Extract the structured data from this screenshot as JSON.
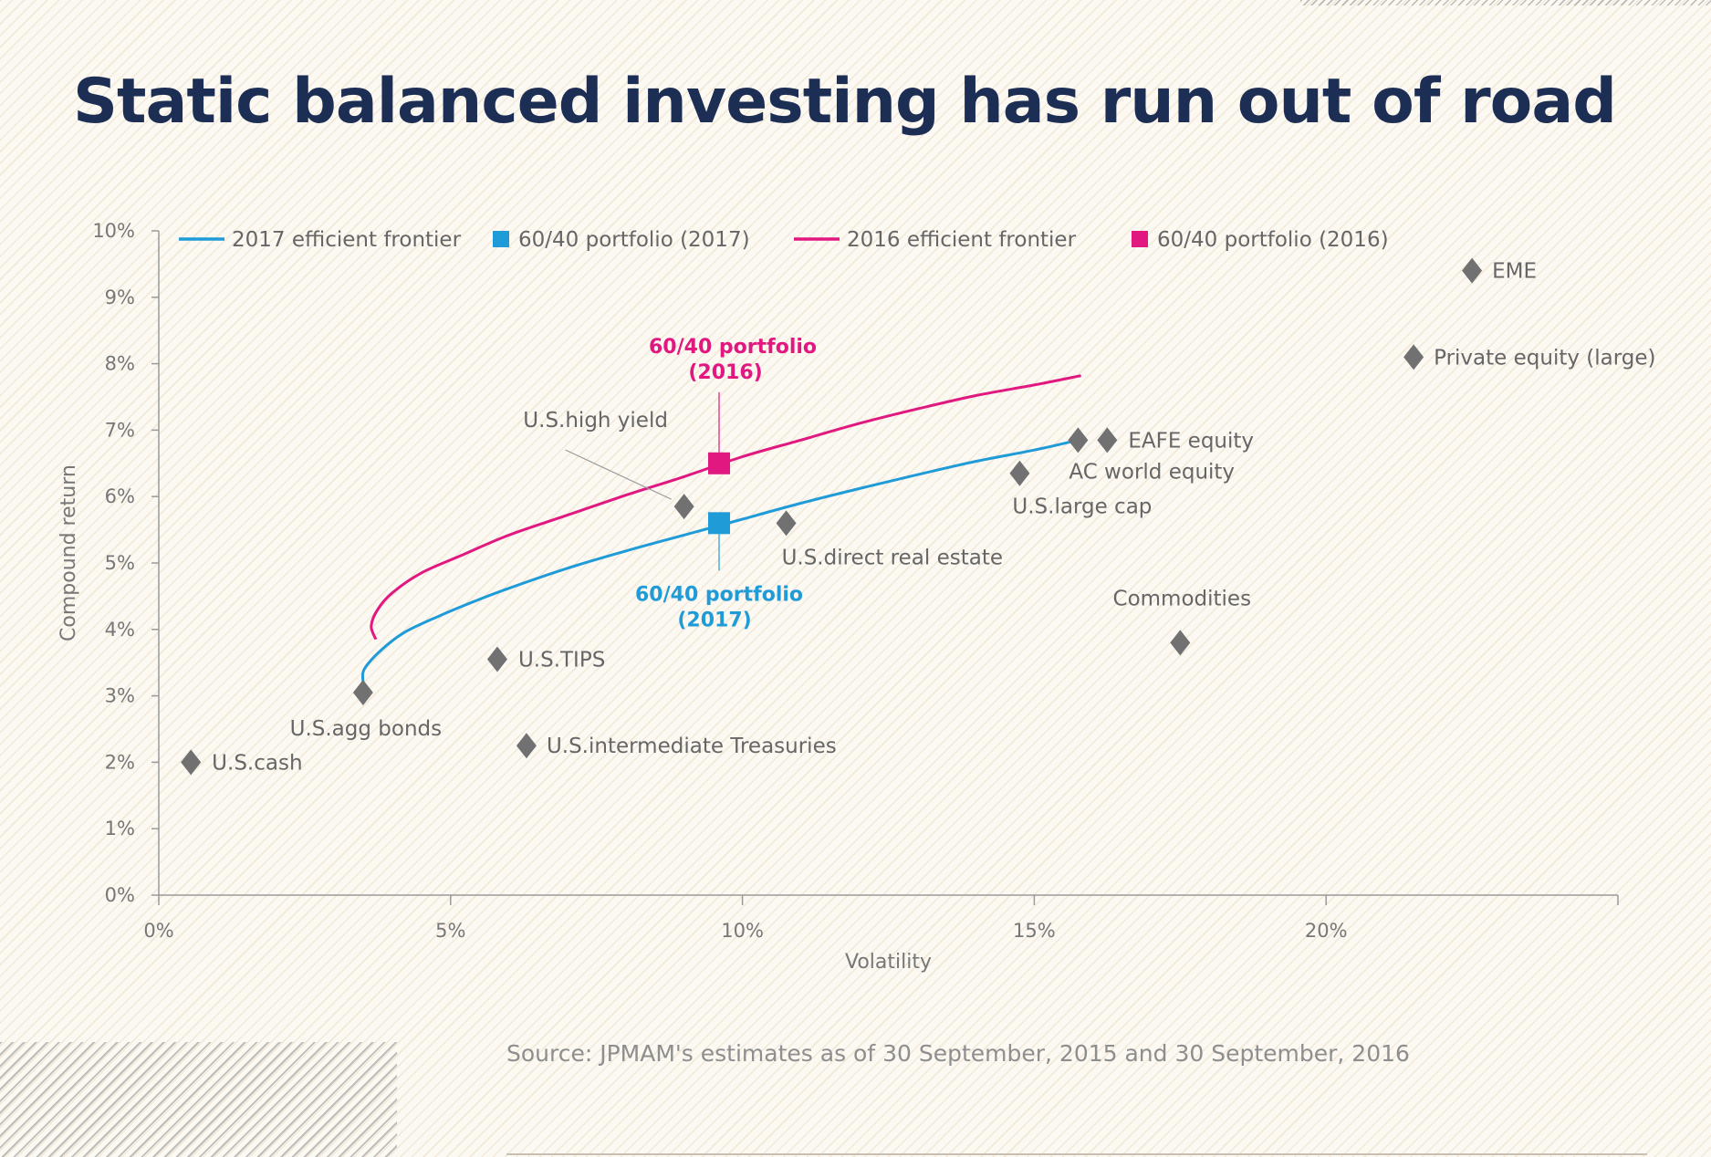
{
  "title": "Static balanced investing has run out of road",
  "source": "Source: JPMAM's estimates as of 30 September, 2015 and 30 September, 2016",
  "colors": {
    "frontier_2017": "#1f9bd8",
    "frontier_2016": "#e0187f",
    "asset_marker": "#717171",
    "title": "#1d2e55"
  },
  "chart_data": {
    "type": "scatter",
    "xlabel": "Volatility",
    "ylabel": "Compound return",
    "xlim": [
      0,
      25
    ],
    "ylim": [
      0,
      10
    ],
    "x_ticks": [
      0,
      5,
      10,
      15,
      20
    ],
    "x_tick_labels": [
      "0%",
      "5%",
      "10%",
      "15%",
      "20%"
    ],
    "y_ticks": [
      0,
      1,
      2,
      3,
      4,
      5,
      6,
      7,
      8,
      9,
      10
    ],
    "y_tick_labels": [
      "0%",
      "1%",
      "2%",
      "3%",
      "4%",
      "5%",
      "6%",
      "7%",
      "8%",
      "9%",
      "10%"
    ],
    "legend": [
      {
        "label": "2017 efficient frontier",
        "kind": "line",
        "color": "#1f9bd8"
      },
      {
        "label": "60/40 portfolio (2017)",
        "kind": "square",
        "color": "#1f9bd8"
      },
      {
        "label": "2016 efficient frontier",
        "kind": "line",
        "color": "#e0187f"
      },
      {
        "label": "60/40 portfolio (2016)",
        "kind": "square",
        "color": "#e0187f"
      }
    ],
    "series": [
      {
        "name": "2017 efficient frontier",
        "color": "#1f9bd8",
        "points": [
          [
            3.5,
            3.2
          ],
          [
            3.52,
            3.4
          ],
          [
            3.8,
            3.68
          ],
          [
            4.2,
            3.95
          ],
          [
            4.8,
            4.2
          ],
          [
            5.4,
            4.42
          ],
          [
            6.0,
            4.62
          ],
          [
            7.0,
            4.92
          ],
          [
            8.0,
            5.18
          ],
          [
            9.0,
            5.42
          ],
          [
            10.0,
            5.66
          ],
          [
            11.0,
            5.9
          ],
          [
            12.0,
            6.12
          ],
          [
            13.0,
            6.33
          ],
          [
            14.0,
            6.53
          ],
          [
            15.0,
            6.7
          ],
          [
            15.75,
            6.85
          ]
        ]
      },
      {
        "name": "2016 efficient frontier",
        "color": "#e0187f",
        "points": [
          [
            3.72,
            3.85
          ],
          [
            3.64,
            4.05
          ],
          [
            3.75,
            4.3
          ],
          [
            4.0,
            4.55
          ],
          [
            4.5,
            4.85
          ],
          [
            5.2,
            5.12
          ],
          [
            6.0,
            5.42
          ],
          [
            7.0,
            5.72
          ],
          [
            8.0,
            6.02
          ],
          [
            9.0,
            6.3
          ],
          [
            10.0,
            6.6
          ],
          [
            11.0,
            6.85
          ],
          [
            12.0,
            7.1
          ],
          [
            13.0,
            7.32
          ],
          [
            14.0,
            7.52
          ],
          [
            15.0,
            7.68
          ],
          [
            15.8,
            7.82
          ]
        ]
      }
    ],
    "portfolios": [
      {
        "name": "60/40 portfolio (2017)",
        "x": 9.6,
        "y": 5.6,
        "color": "#1f9bd8",
        "label_lines": [
          "60/40 portfolio",
          "(2017)"
        ]
      },
      {
        "name": "60/40 portfolio (2016)",
        "x": 9.6,
        "y": 6.5,
        "color": "#e0187f",
        "label_lines": [
          "60/40 portfolio",
          "(2016)"
        ]
      }
    ],
    "assets": [
      {
        "name": "U.S.cash",
        "x": 0.55,
        "y": 2.0
      },
      {
        "name": "U.S.agg bonds",
        "x": 3.5,
        "y": 3.05
      },
      {
        "name": "U.S.TIPS",
        "x": 5.8,
        "y": 3.55
      },
      {
        "name": "U.S.intermediate Treasuries",
        "x": 6.3,
        "y": 2.25
      },
      {
        "name": "U.S.high yield",
        "x": 9.0,
        "y": 5.85
      },
      {
        "name": "U.S.direct real estate",
        "x": 10.75,
        "y": 5.6
      },
      {
        "name": "U.S.large cap",
        "x": 14.75,
        "y": 6.35
      },
      {
        "name": "AC world equity",
        "x": 15.75,
        "y": 6.85
      },
      {
        "name": "EAFE equity",
        "x": 16.25,
        "y": 6.85
      },
      {
        "name": "Commodities",
        "x": 17.5,
        "y": 3.8
      },
      {
        "name": "Private equity (large)",
        "x": 21.5,
        "y": 8.1
      },
      {
        "name": "EME",
        "x": 22.5,
        "y": 9.4
      }
    ]
  }
}
